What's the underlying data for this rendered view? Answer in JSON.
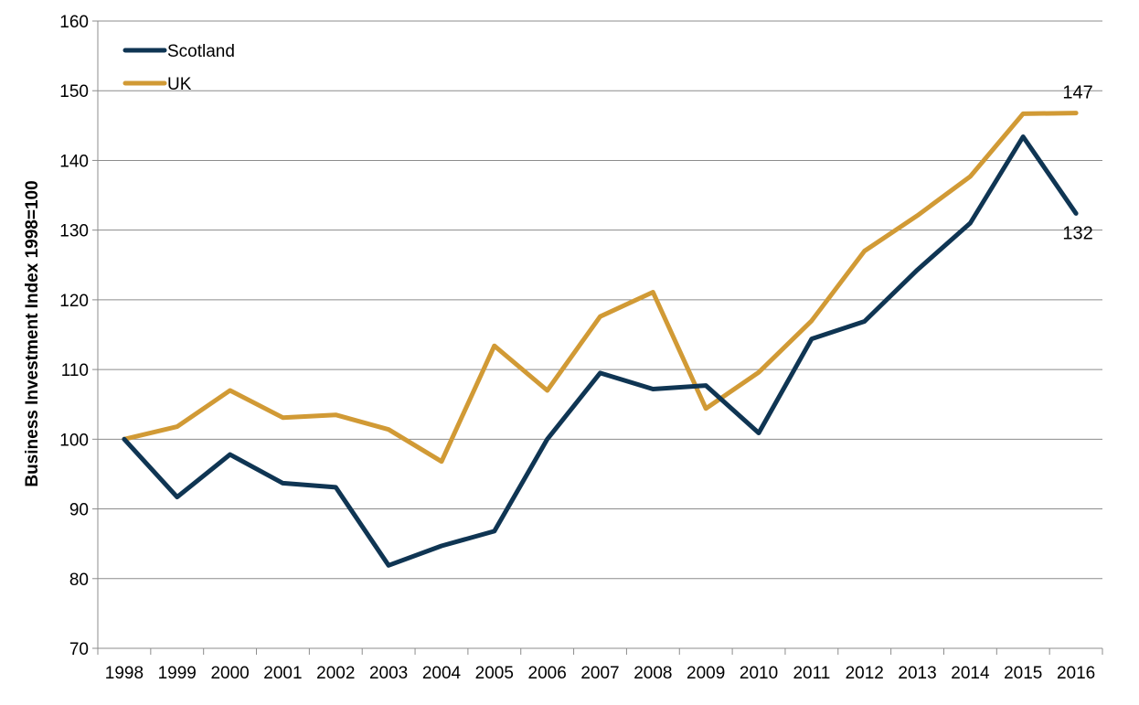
{
  "chart_data": {
    "type": "line",
    "title": "",
    "xlabel": "",
    "ylabel": "Business Investment Index 1998=100",
    "ylim": [
      70,
      160
    ],
    "yticks": [
      70,
      80,
      90,
      100,
      110,
      120,
      130,
      140,
      150,
      160
    ],
    "grid": true,
    "legend_position": "top-left",
    "categories": [
      "1998",
      "1999",
      "2000",
      "2001",
      "2002",
      "2003",
      "2004",
      "2005",
      "2006",
      "2007",
      "2008",
      "2009",
      "2010",
      "2011",
      "2012",
      "2013",
      "2014",
      "2015",
      "2016"
    ],
    "series": [
      {
        "name": "Scotland",
        "color": "#0f3553",
        "values": [
          100,
          91.7,
          97.8,
          93.7,
          93.1,
          81.9,
          84.7,
          86.8,
          100,
          109.5,
          107.2,
          107.7,
          100.9,
          114.4,
          116.9,
          124.3,
          131,
          143.4,
          132.4
        ],
        "end_label": "132"
      },
      {
        "name": "UK",
        "color": "#d19a35",
        "values": [
          100,
          101.8,
          107,
          103.1,
          103.5,
          101.4,
          96.8,
          113.4,
          107,
          117.6,
          121.1,
          104.4,
          109.6,
          117,
          127,
          132.1,
          137.7,
          146.7,
          146.8
        ],
        "end_label": "147"
      }
    ]
  }
}
